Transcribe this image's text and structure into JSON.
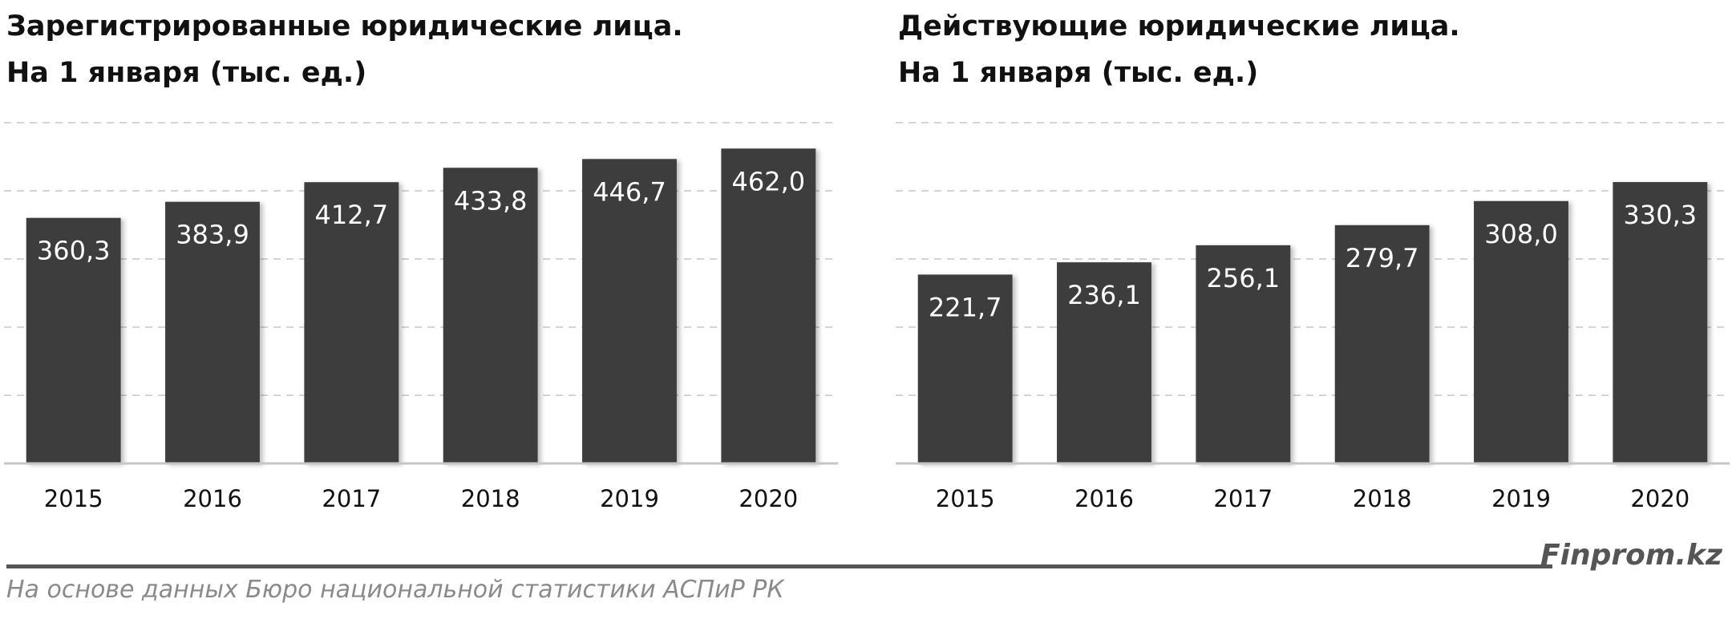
{
  "chart_data": [
    {
      "type": "bar",
      "title_line1": "Зарегистрированные юридические лица.",
      "title_line2": "На 1 января (тыс. ед.)",
      "categories": [
        "2015",
        "2016",
        "2017",
        "2018",
        "2019",
        "2020"
      ],
      "values": [
        360.3,
        383.9,
        412.7,
        433.8,
        446.7,
        462.0
      ],
      "value_labels": [
        "360,3",
        "383,9",
        "412,7",
        "433,8",
        "446,7",
        "462,0"
      ],
      "ylim": [
        0,
        500
      ],
      "grid": true
    },
    {
      "type": "bar",
      "title_line1": "Действующие юридические лица.",
      "title_line2": "На 1 января (тыс. ед.)",
      "categories": [
        "2015",
        "2016",
        "2017",
        "2018",
        "2019",
        "2020"
      ],
      "values": [
        221.7,
        236.1,
        256.1,
        279.7,
        308.0,
        330.3
      ],
      "value_labels": [
        "221,7",
        "236,1",
        "256,1",
        "279,7",
        "308,0",
        "330,3"
      ],
      "ylim": [
        0,
        400
      ],
      "grid": true
    }
  ],
  "colors": {
    "bar": "#3d3d3d",
    "value_label": "#ffffff",
    "grid": "#d4d4d4",
    "axis": "#c6c6c6"
  },
  "footer": {
    "brand": "Finprom.kz",
    "source": "На основе данных Бюро национальной статистики АСПиР РК"
  }
}
